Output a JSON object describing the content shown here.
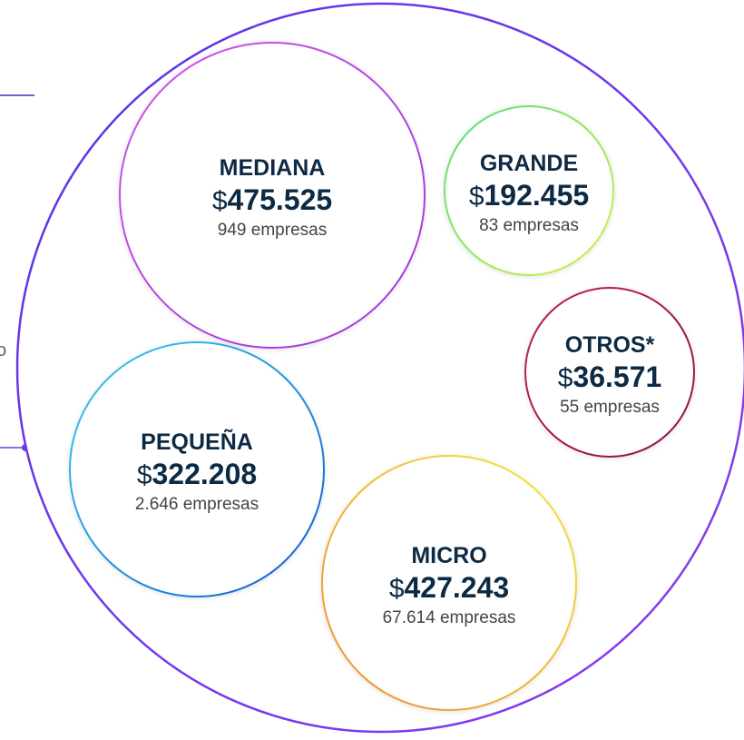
{
  "side_text": "o",
  "nodes": [
    {
      "label": "MEDIANA",
      "currency": "$",
      "amount": "475.525",
      "count": "949 empresas"
    },
    {
      "label": "GRANDE",
      "currency": "$",
      "amount": "192.455",
      "count": "83 empresas"
    },
    {
      "label": "OTROS*",
      "currency": "$",
      "amount": "36.571",
      "count": "55 empresas"
    },
    {
      "label": "PEQUEÑA",
      "currency": "$",
      "amount": "322.208",
      "count": "2.646 empresas"
    },
    {
      "label": "MICRO",
      "currency": "$",
      "amount": "427.243",
      "count": "67.614 empresas"
    }
  ]
}
